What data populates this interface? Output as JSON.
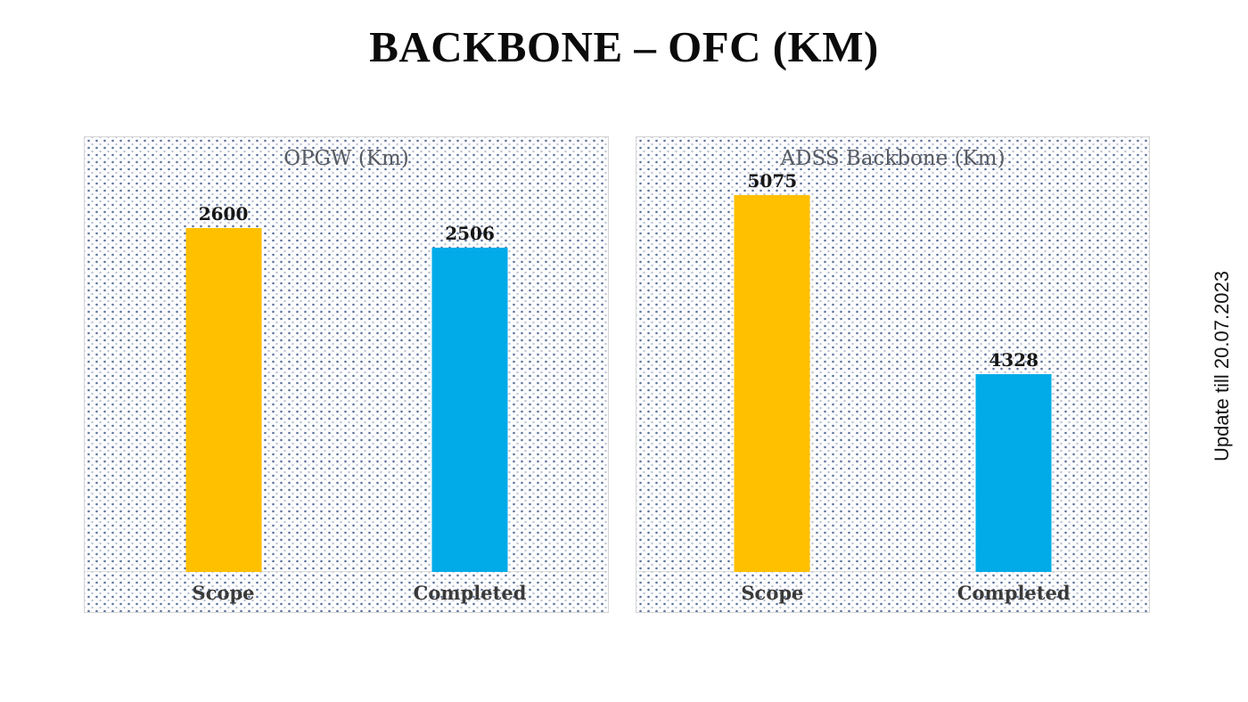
{
  "slide": {
    "title": "BACKBONE – OFC (KM)",
    "side_note": "Update till 20.07.2023"
  },
  "colors": {
    "scope_bar": "#FFC000",
    "completed_bar": "#00ABE8",
    "chart_title_text": "#565b63",
    "data_label_text": "#161616",
    "category_label_text": "#3a3a3a",
    "panel_border": "#d5d5d5",
    "baseline_line": "#d9d9d9",
    "pattern_dot": "#345082"
  },
  "chart_data": [
    {
      "type": "bar",
      "title": "OPGW (Km)",
      "categories": [
        "Scope",
        "Completed"
      ],
      "values": [
        2600,
        2506
      ],
      "data_labels": [
        "2600",
        "2506"
      ],
      "bar_colors": [
        "#FFC000",
        "#00ABE8"
      ],
      "ylim": [
        1000,
        3000
      ],
      "grid": false,
      "legend_position": "none"
    },
    {
      "type": "bar",
      "title": "ADSS Backbone (Km)",
      "categories": [
        "Scope",
        "Completed"
      ],
      "values": [
        5075,
        4328
      ],
      "data_labels": [
        "5075",
        "4328"
      ],
      "bar_colors": [
        "#FFC000",
        "#00ABE8"
      ],
      "ylim": [
        3500,
        5300
      ],
      "grid": false,
      "legend_position": "none"
    }
  ]
}
